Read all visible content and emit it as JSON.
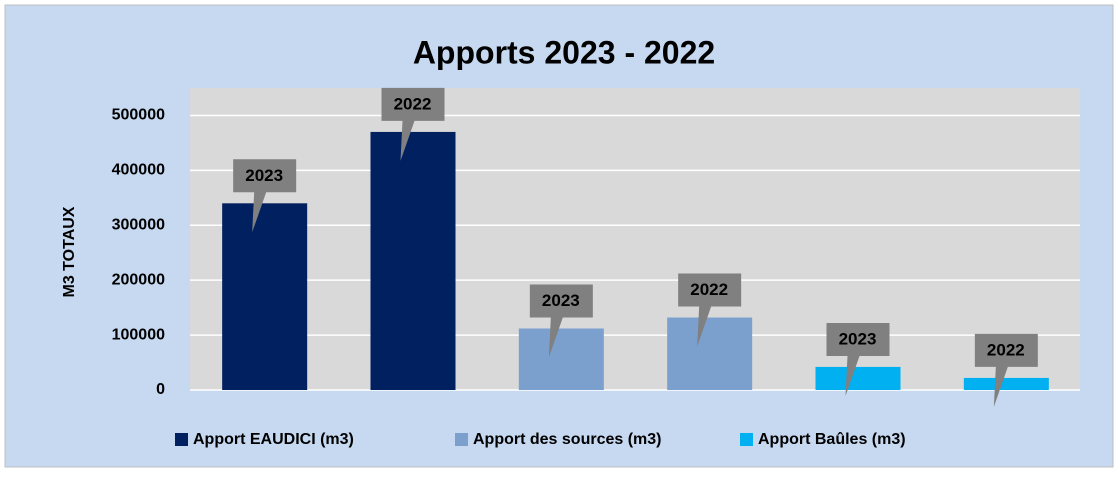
{
  "chart_data": {
    "type": "bar",
    "title": "Apports 2023 - 2022",
    "y_label": "M3 TOTAUX",
    "categories": [
      "2023",
      "2022"
    ],
    "series": [
      {
        "name": "Apport EAUDICI (m3)",
        "color": "#002060",
        "values": [
          340000,
          470000
        ]
      },
      {
        "name": "Apport des sources (m3)",
        "color": "#7ba0cd",
        "values": [
          112000,
          132000
        ]
      },
      {
        "name": "Apport Baûles (m3)",
        "color": "#00b0f0",
        "values": [
          42000,
          22000
        ]
      }
    ],
    "ylim": [
      0,
      550000
    ],
    "yticks": [
      0,
      100000,
      200000,
      300000,
      400000,
      500000
    ],
    "grid": true,
    "legend": "bottom"
  }
}
